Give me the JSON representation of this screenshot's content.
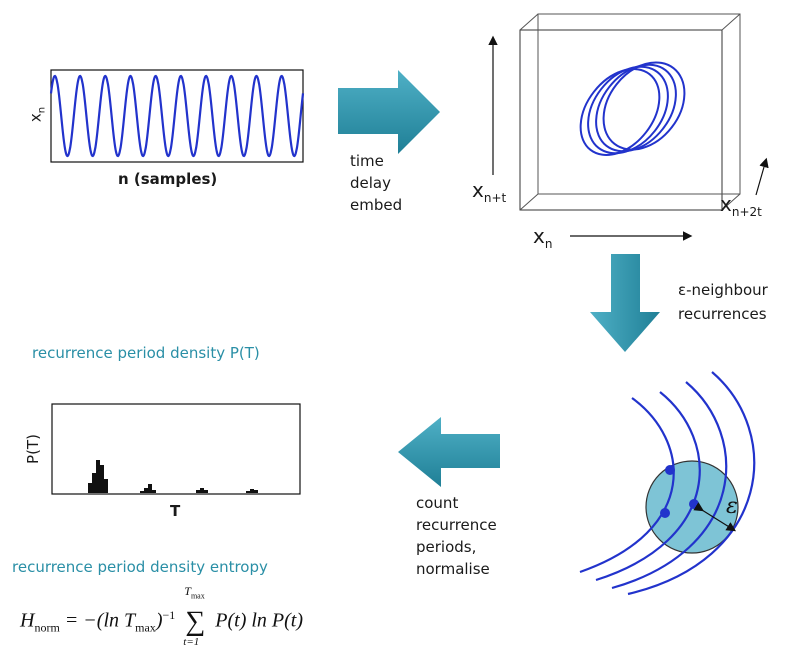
{
  "signal_panel": {
    "ylabel": "x",
    "ylabel_sub": "n",
    "xlabel": "n (samples)"
  },
  "step1": {
    "label_lines": [
      "time",
      "delay",
      "embed"
    ]
  },
  "phase_space": {
    "axis_x": "x",
    "axis_x_sub": "n",
    "axis_y": "x",
    "axis_y_sub": "n+t",
    "axis_z": "x",
    "axis_z_sub": "n+2t"
  },
  "step2": {
    "label_lines": [
      "ε-neighbour",
      "recurrences"
    ]
  },
  "neighbourhood": {
    "radius_symbol": "ε"
  },
  "step3": {
    "label_lines": [
      "count",
      "recurrence",
      "periods,",
      "normalise"
    ]
  },
  "density_panel": {
    "title": "recurrence period density P(T)",
    "ylabel": "P(T)",
    "xlabel": "T"
  },
  "entropy": {
    "title": "recurrence period density entropy",
    "formula": {
      "lhs": "H",
      "lhs_sub": "norm",
      "eq": "= −(ln T",
      "tmax_sub": "max",
      "pow": ")",
      "exp": "−1",
      "sum_upper": "T",
      "sum_upper_sub": "max",
      "sum_lower": "t=1",
      "body": "P(t) ln P(t)"
    }
  },
  "colors": {
    "arrow": "#2a8fa6",
    "curve": "#2233cc",
    "ball": "#7ec4d6",
    "teal_text": "#2a8fa6"
  }
}
